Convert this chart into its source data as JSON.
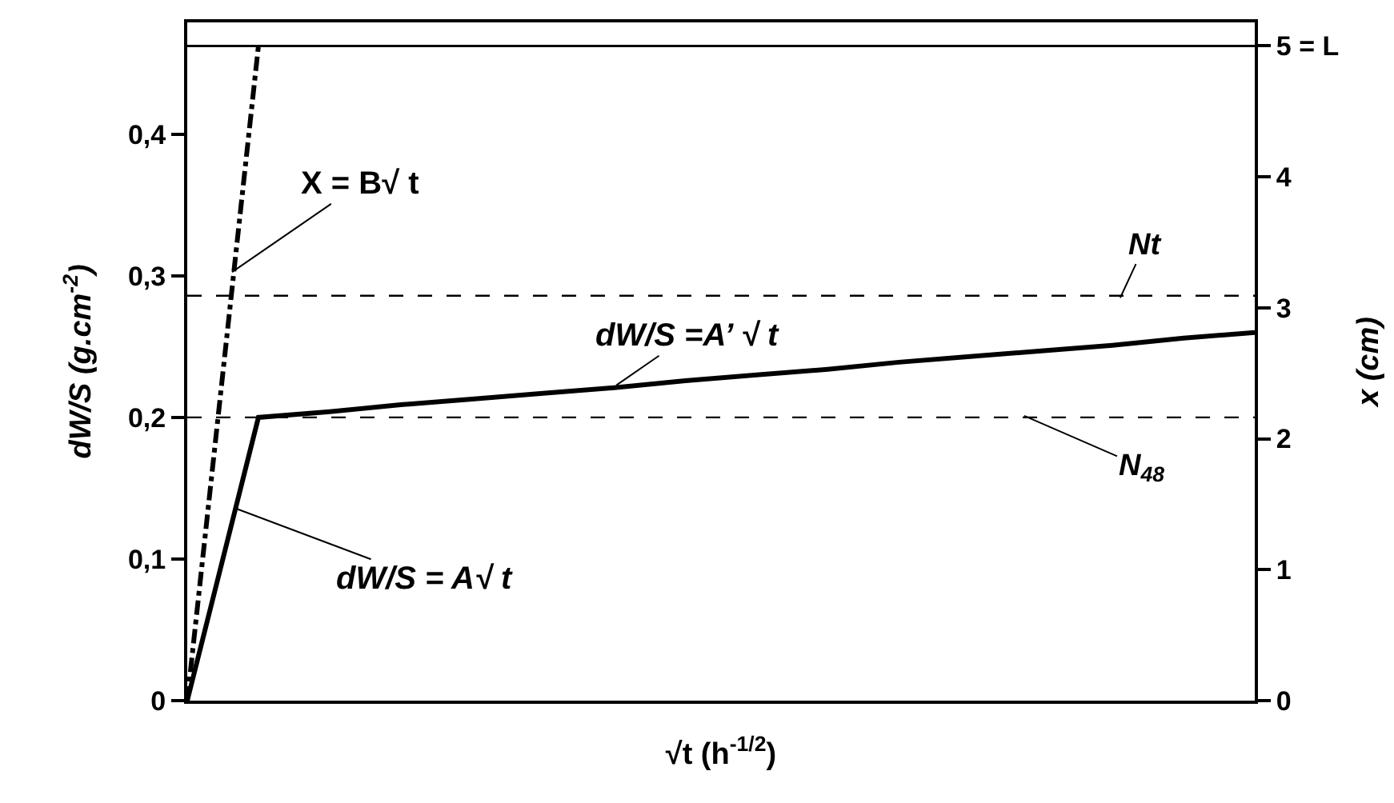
{
  "chart_data": {
    "type": "line",
    "xlabel": "√t (h$^{-1/2}$)",
    "ylabel": "dW/S (g.cm$^{-2}$)",
    "y2label": "x (cm)",
    "categories": [
      null,
      null,
      null,
      null,
      null,
      null,
      null,
      null,
      null,
      null,
      null,
      null,
      null,
      null,
      null,
      null
    ],
    "series": [
      {
        "color": "#000000",
        "line_style": "solid",
        "values": [
          0,
          0.2,
          0.204,
          0.209,
          0.213,
          0.217,
          0.221,
          0.226,
          0.23,
          0.234,
          0.239,
          0.243,
          0.247,
          0.251,
          0.256,
          0.26
        ]
      },
      {
        "color": "#000000",
        "line_style": "dashdot",
        "axis": "y2",
        "values": [
          0,
          5,
          null,
          null,
          null,
          null,
          null,
          null,
          null,
          null,
          null,
          null,
          null,
          null,
          null,
          null
        ]
      }
    ],
    "ylim": [
      0,
      0.479
    ],
    "yticks": [
      {
        "value": 0,
        "label": "0"
      },
      {
        "value": 0.1,
        "label": "0,1"
      },
      {
        "value": 0.2,
        "label": "0,2"
      },
      {
        "value": 0.3,
        "label": "0,3"
      },
      {
        "value": 0.4,
        "label": "0,4"
      }
    ],
    "y2lim": [
      0,
      5.18
    ],
    "y2ticks": [
      0,
      1,
      2,
      3,
      4,
      {
        "value": 5,
        "label": "5 = L"
      }
    ],
    "ref_lines": [
      {
        "axis": "y",
        "value": 0.286,
        "label": "Nt",
        "line_style": "dashed",
        "color": "#000000"
      },
      {
        "axis": "y",
        "value": 0.2,
        "label": "N$_{48}$",
        "line_style": "dashed",
        "color": "#000000"
      },
      {
        "axis": "y2",
        "value": 5,
        "line_style": "solid",
        "color": "#000000"
      }
    ],
    "annotations": [
      "X = B√ t",
      "dW/S =A’ √ t",
      "dW/S = A√ t"
    ],
    "tick_labels": "y"
  }
}
